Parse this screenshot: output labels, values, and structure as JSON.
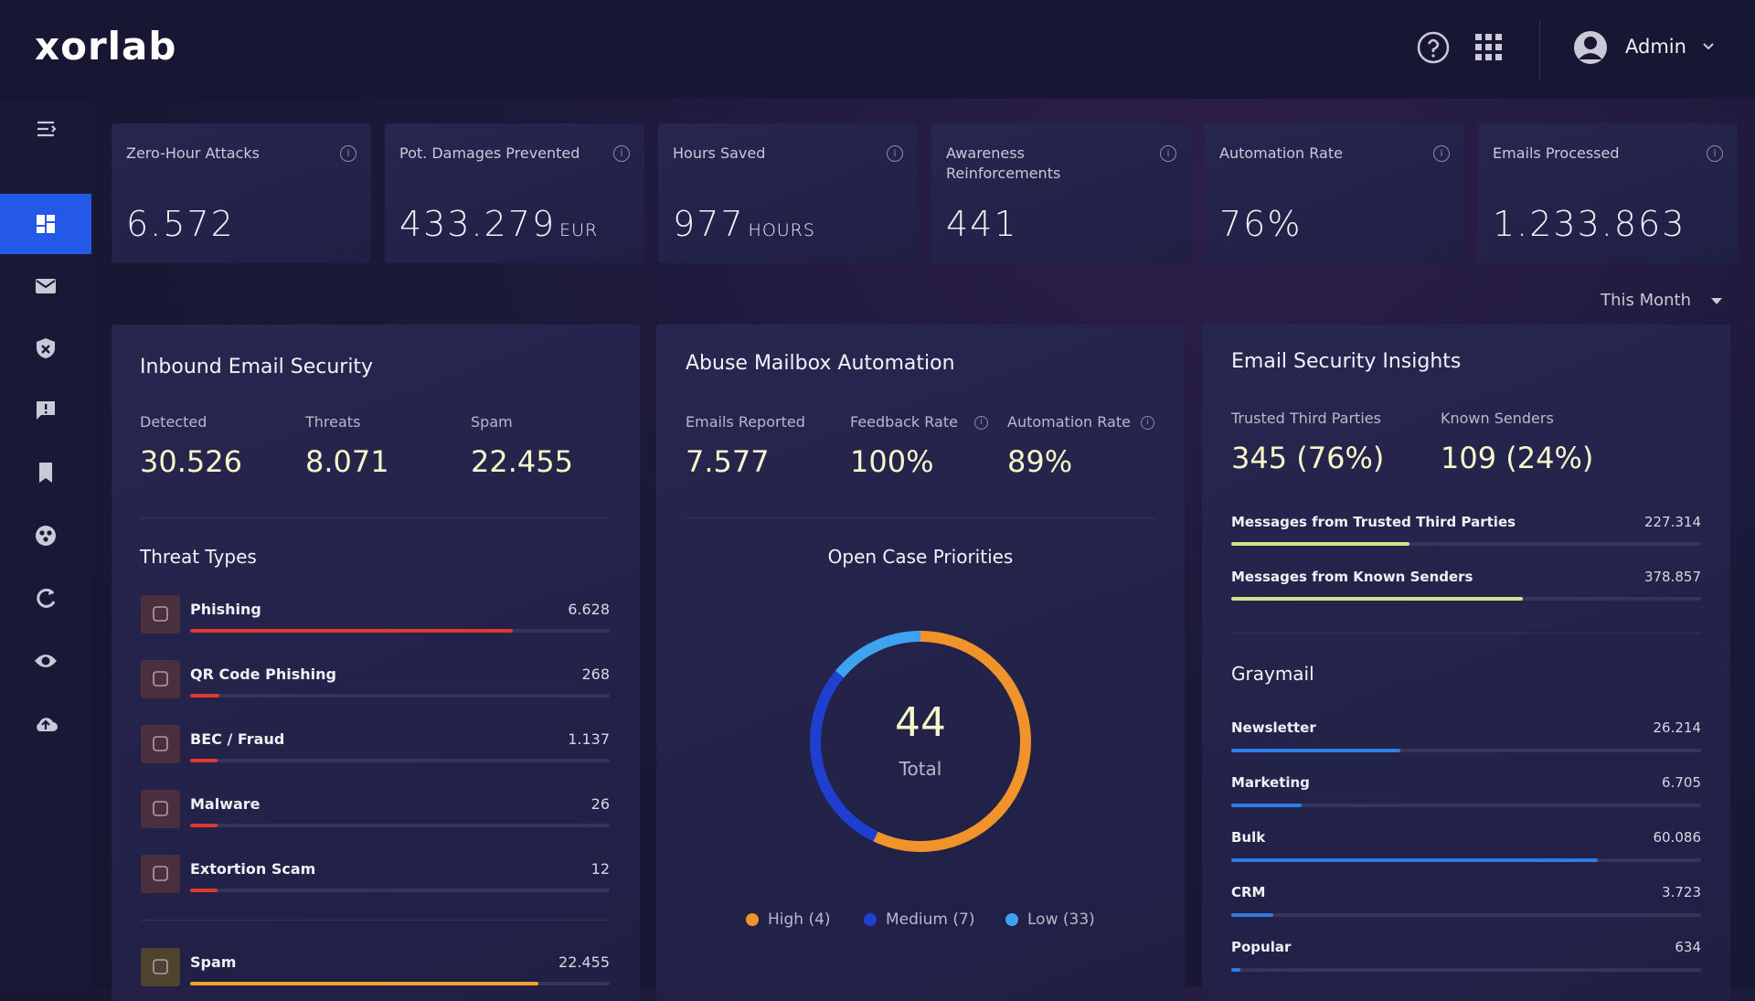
{
  "header": {
    "logo": "xorlab",
    "user": "Admin"
  },
  "kpis": [
    {
      "label": "Zero-Hour Attacks",
      "value": "6.572"
    },
    {
      "label": "Pot. Damages Prevented",
      "value": "433.279",
      "unit": "EUR"
    },
    {
      "label": "Hours Saved",
      "value": "977",
      "unit": "HOURS"
    },
    {
      "label": "Awareness Reinforcements",
      "value": "441"
    },
    {
      "label": "Automation Rate",
      "value": "76%"
    },
    {
      "label": "Emails Processed",
      "value": "1.233.863"
    }
  ],
  "period": "This Month",
  "inbound": {
    "title": "Inbound Email Security",
    "stats": [
      {
        "label": "Detected",
        "value": "30.526"
      },
      {
        "label": "Threats",
        "value": "8.071"
      },
      {
        "label": "Spam",
        "value": "22.455"
      }
    ],
    "threat_title": "Threat Types",
    "threats": [
      {
        "name": "Phishing",
        "value": "6.628"
      },
      {
        "name": "QR Code Phishing",
        "value": "268"
      },
      {
        "name": "BEC / Fraud",
        "value": "1.137"
      },
      {
        "name": "Malware",
        "value": "26"
      },
      {
        "name": "Extortion Scam",
        "value": "12"
      }
    ],
    "spam": {
      "name": "Spam",
      "value": "22.455"
    }
  },
  "abuse": {
    "title": "Abuse Mailbox Automation",
    "stats": [
      {
        "label": "Emails Reported",
        "value": "7.577"
      },
      {
        "label": "Feedback Rate",
        "value": "100%"
      },
      {
        "label": "Automation Rate",
        "value": "89%"
      }
    ],
    "chart_title": "Open Case Priorities",
    "total": "44",
    "total_label": "Total",
    "legend": [
      "High (4)",
      "Medium (7)",
      "Low (33)"
    ]
  },
  "insights": {
    "title": "Email Security Insights",
    "stats": [
      {
        "label": "Trusted Third Parties",
        "value": "345 (76%)"
      },
      {
        "label": "Known Senders",
        "value": "109 (24%)"
      }
    ],
    "messages": [
      {
        "name": "Messages from Trusted Third Parties",
        "value": "227.314"
      },
      {
        "name": "Messages from Known Senders",
        "value": "378.857"
      }
    ],
    "graymail_title": "Graymail",
    "graymail": [
      {
        "name": "Newsletter",
        "value": "26.214"
      },
      {
        "name": "Marketing",
        "value": "6.705"
      },
      {
        "name": "Bulk",
        "value": "60.086"
      },
      {
        "name": "CRM",
        "value": "3.723"
      },
      {
        "name": "Popular",
        "value": "634"
      }
    ]
  }
}
